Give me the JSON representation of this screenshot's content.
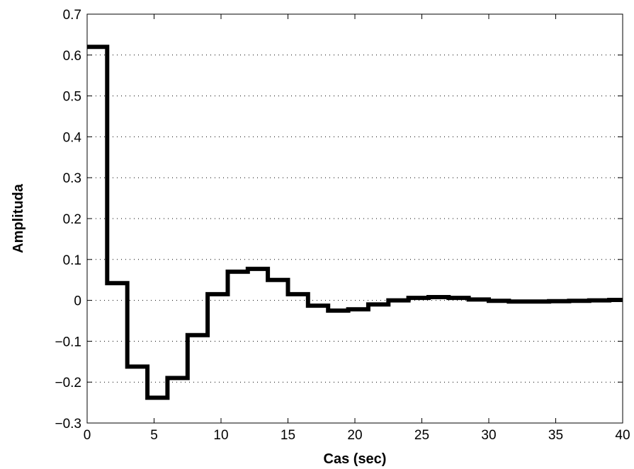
{
  "chart_data": {
    "type": "line",
    "step": true,
    "title": "",
    "xlabel": "Cas (sec)",
    "ylabel": "Amplituda",
    "xlim": [
      0,
      40
    ],
    "ylim": [
      -0.3,
      0.7
    ],
    "x_ticks": [
      0,
      5,
      10,
      15,
      20,
      25,
      30,
      35,
      40
    ],
    "y_ticks": [
      -0.3,
      -0.2,
      -0.1,
      0,
      0.1,
      0.2,
      0.3,
      0.4,
      0.5,
      0.6,
      0.7
    ],
    "x_tick_labels": [
      "0",
      "5",
      "10",
      "15",
      "20",
      "25",
      "30",
      "35",
      "40"
    ],
    "y_tick_labels": [
      "−0.3",
      "−0.2",
      "−0.1",
      "0",
      "0.1",
      "0.2",
      "0.3",
      "0.4",
      "0.5",
      "0.6",
      "0.7"
    ],
    "grid": "y-dotted",
    "line_color": "#000000",
    "series": [
      {
        "x": [
          0,
          1.5,
          3,
          4.5,
          6,
          7.5,
          9,
          10.5,
          12,
          13.5,
          15,
          16.5,
          18,
          19.5,
          21,
          22.5,
          24,
          25.5,
          27,
          28.5,
          30,
          31.5,
          33,
          34.5,
          36,
          37.5,
          39
        ],
        "y": [
          0.62,
          0.042,
          -0.162,
          -0.238,
          -0.19,
          -0.085,
          0.015,
          0.07,
          0.077,
          0.05,
          0.015,
          -0.013,
          -0.025,
          -0.022,
          -0.01,
          0.0,
          0.006,
          0.008,
          0.006,
          0.002,
          -0.001,
          -0.003,
          -0.003,
          -0.002,
          -0.001,
          0.0,
          0.001
        ]
      }
    ]
  }
}
